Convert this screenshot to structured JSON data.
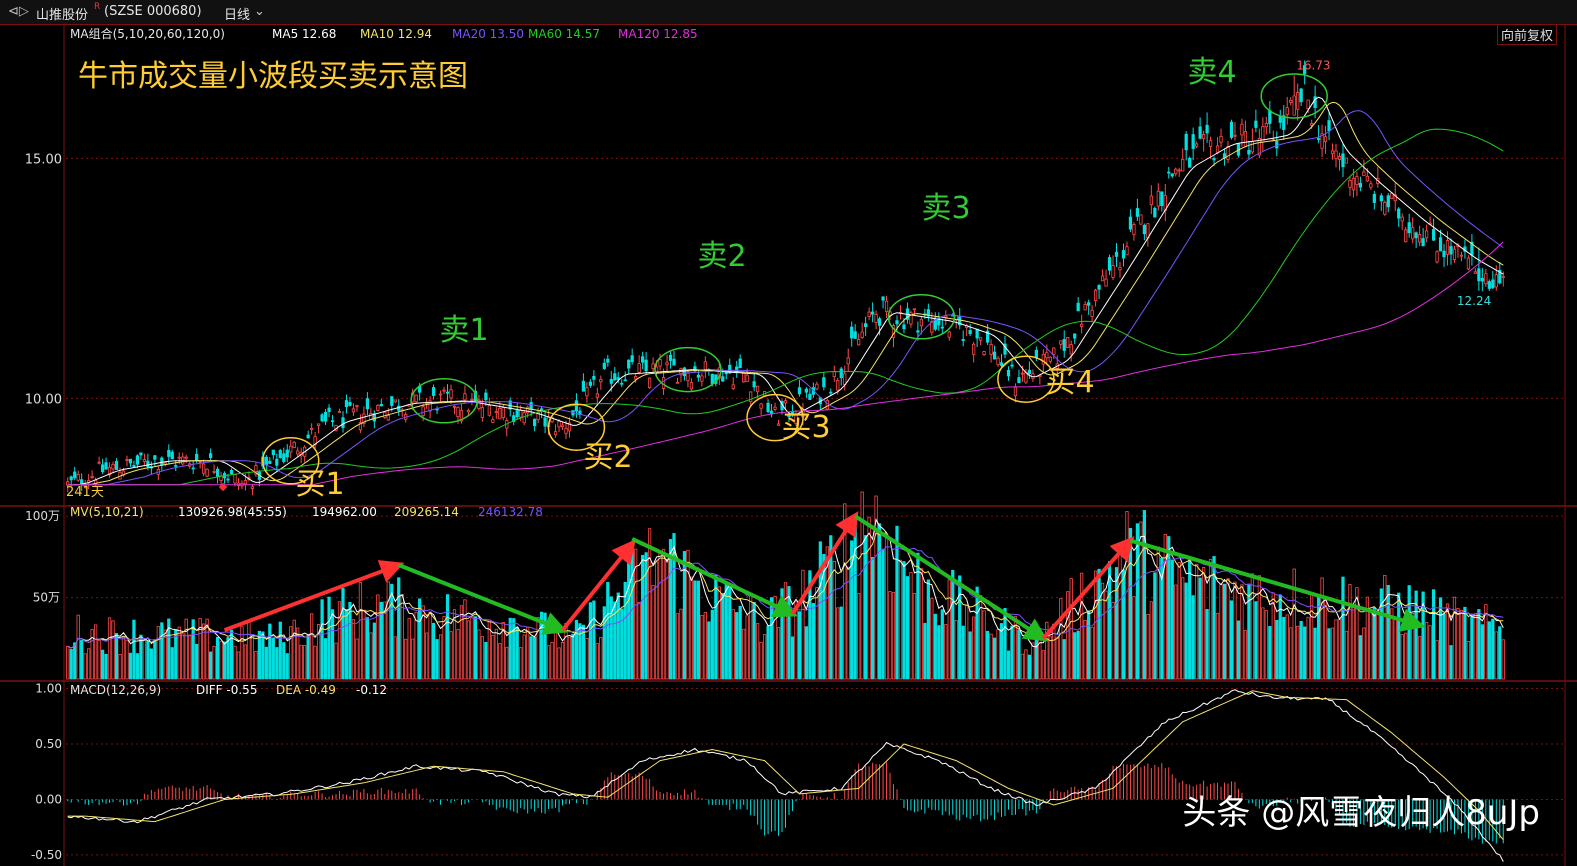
{
  "topbar": {
    "stock_name": "山推股份",
    "stock_code": "(SZSE 000680)",
    "period": "日线",
    "fq": "向前复权"
  },
  "ma_legend": {
    "combo": "MA组合(5,10,20,60,120,0)",
    "items": [
      {
        "label": "MA5 12.68",
        "color": "#ffffff"
      },
      {
        "label": "MA10 12.94",
        "color": "#f5e36a"
      },
      {
        "label": "MA20 13.50",
        "color": "#7a52ff"
      },
      {
        "label": "MA60 14.57",
        "color": "#22cc22"
      },
      {
        "label": "MA120 12.85",
        "color": "#e030e0"
      }
    ]
  },
  "annotation_title": "牛市成交量小波段买卖示意图",
  "buy_labels": [
    "买1",
    "买2",
    "买3",
    "买4"
  ],
  "sell_labels": [
    "卖1",
    "卖2",
    "卖3",
    "卖4"
  ],
  "days_label": "241天",
  "high_label": "16.73",
  "low_label": "12.24",
  "mv_legend": {
    "name": "MV(5,10,21)",
    "values": [
      "130926.98(45:55)",
      "194962.00",
      "209265.14",
      "246132.78"
    ],
    "colors": [
      "#ffffff",
      "#ffffff",
      "#f5e36a",
      "#7a52ff"
    ]
  },
  "macd_legend": {
    "name": "MACD(12,26,9)",
    "diff": "DIFF -0.55",
    "dea": "DEA -0.49",
    "macd": "-0.12"
  },
  "watermark": "头条 @风雪夜归人8uJp",
  "colors": {
    "up": "#ff4a4a",
    "down": "#00e0e0",
    "grid": "#7a1010",
    "buy": "#ffcc33",
    "sell": "#33cc33"
  },
  "chart_data": [
    {
      "type": "candlestick",
      "title": "牛市成交量小波段买卖示意图",
      "ylim": [
        7.8,
        17.8
      ],
      "yticks": [
        {
          "value": 15.0,
          "label": "15.00"
        },
        {
          "value": 10.0,
          "label": "10.00"
        }
      ],
      "price_path": [
        [
          0,
          8.2
        ],
        [
          10,
          8.5
        ],
        [
          25,
          8.7
        ],
        [
          40,
          8.7
        ],
        [
          50,
          8.2
        ],
        [
          60,
          8.7
        ],
        [
          75,
          9.5
        ],
        [
          95,
          9.9
        ],
        [
          110,
          9.95
        ],
        [
          130,
          9.7
        ],
        [
          142,
          9.4
        ],
        [
          155,
          10.5
        ],
        [
          175,
          10.6
        ],
        [
          195,
          10.5
        ],
        [
          203,
          9.6
        ],
        [
          218,
          10.2
        ],
        [
          232,
          11.8
        ],
        [
          250,
          11.6
        ],
        [
          262,
          11.3
        ],
        [
          272,
          10.4
        ],
        [
          283,
          10.8
        ],
        [
          300,
          12.7
        ],
        [
          318,
          14.8
        ],
        [
          330,
          15.3
        ],
        [
          340,
          15.4
        ],
        [
          347,
          15.5
        ],
        [
          355,
          16.4
        ],
        [
          362,
          15.2
        ],
        [
          372,
          14.5
        ],
        [
          385,
          13.7
        ],
        [
          400,
          12.9
        ],
        [
          412,
          12.4
        ]
      ],
      "ma_series": [
        {
          "name": "MA5",
          "color": "#ffffff",
          "lag": 3
        },
        {
          "name": "MA10",
          "color": "#f5e36a",
          "lag": 6
        },
        {
          "name": "MA20",
          "color": "#7a52ff",
          "lag": 11
        },
        {
          "name": "MA60",
          "color": "#22cc22",
          "lag": 32
        },
        {
          "name": "MA120",
          "color": "#e030e0",
          "lag": 70
        }
      ],
      "marked_high": 16.73,
      "marked_low": 12.24,
      "buy_points": [
        {
          "label": "买1",
          "bar": 64,
          "price": 8.7
        },
        {
          "label": "买2",
          "bar": 146,
          "price": 9.4
        },
        {
          "label": "买3",
          "bar": 203,
          "price": 9.6
        },
        {
          "label": "买4",
          "bar": 275,
          "price": 10.4
        }
      ],
      "sell_points": [
        {
          "label": "卖1",
          "bar": 108,
          "price": 9.95
        },
        {
          "label": "卖2",
          "bar": 178,
          "price": 10.6
        },
        {
          "label": "卖3",
          "bar": 245,
          "price": 11.7
        },
        {
          "label": "卖4",
          "bar": 352,
          "price": 16.3
        }
      ]
    },
    {
      "type": "bar",
      "title": "MV(5,10,21)",
      "ylim": [
        0,
        1050000
      ],
      "yticks": [
        {
          "value": 1000000,
          "label": "100万"
        },
        {
          "value": 500000,
          "label": "50万"
        }
      ],
      "volume_path": [
        [
          0,
          280000
        ],
        [
          40,
          260000
        ],
        [
          60,
          240000
        ],
        [
          75,
          380000
        ],
        [
          90,
          450000
        ],
        [
          110,
          380000
        ],
        [
          130,
          340000
        ],
        [
          145,
          230000
        ],
        [
          160,
          560000
        ],
        [
          170,
          760000
        ],
        [
          185,
          500000
        ],
        [
          200,
          340000
        ],
        [
          215,
          560000
        ],
        [
          230,
          1020000
        ],
        [
          245,
          560000
        ],
        [
          260,
          400000
        ],
        [
          278,
          220000
        ],
        [
          290,
          470000
        ],
        [
          305,
          780000
        ],
        [
          320,
          600000
        ],
        [
          340,
          520000
        ],
        [
          360,
          480000
        ],
        [
          385,
          430000
        ],
        [
          400,
          340000
        ],
        [
          412,
          300000
        ]
      ],
      "trend_arrows": [
        {
          "kind": "up",
          "from": [
            45,
            300000
          ],
          "to": [
            95,
            700000
          ]
        },
        {
          "kind": "down",
          "from": [
            95,
            700000
          ],
          "to": [
            142,
            300000
          ]
        },
        {
          "kind": "up",
          "from": [
            142,
            300000
          ],
          "to": [
            162,
            830000
          ]
        },
        {
          "kind": "down",
          "from": [
            162,
            860000
          ],
          "to": [
            208,
            400000
          ]
        },
        {
          "kind": "up",
          "from": [
            208,
            400000
          ],
          "to": [
            226,
            1000000
          ]
        },
        {
          "kind": "down",
          "from": [
            226,
            1000000
          ],
          "to": [
            280,
            250000
          ]
        },
        {
          "kind": "up",
          "from": [
            280,
            250000
          ],
          "to": [
            305,
            850000
          ]
        },
        {
          "kind": "down",
          "from": [
            305,
            850000
          ],
          "to": [
            388,
            330000
          ]
        }
      ]
    },
    {
      "type": "line",
      "title": "MACD(12,26,9)",
      "ylim": [
        -0.6,
        1.05
      ],
      "yticks": [
        {
          "value": 1.0,
          "label": "1.00"
        },
        {
          "value": 0.5,
          "label": "0.50"
        },
        {
          "value": 0.0,
          "label": "0.00"
        },
        {
          "value": -0.5,
          "label": "-0.50"
        }
      ],
      "diff_path": [
        [
          0,
          -0.15
        ],
        [
          20,
          -0.2
        ],
        [
          40,
          0.0
        ],
        [
          60,
          0.05
        ],
        [
          80,
          0.15
        ],
        [
          100,
          0.3
        ],
        [
          120,
          0.25
        ],
        [
          140,
          0.05
        ],
        [
          150,
          0.02
        ],
        [
          165,
          0.35
        ],
        [
          180,
          0.45
        ],
        [
          195,
          0.35
        ],
        [
          205,
          0.05
        ],
        [
          222,
          0.1
        ],
        [
          235,
          0.5
        ],
        [
          250,
          0.35
        ],
        [
          265,
          0.1
        ],
        [
          278,
          -0.05
        ],
        [
          295,
          0.1
        ],
        [
          315,
          0.7
        ],
        [
          335,
          0.98
        ],
        [
          345,
          0.92
        ],
        [
          362,
          0.9
        ],
        [
          375,
          0.6
        ],
        [
          390,
          0.2
        ],
        [
          400,
          -0.1
        ],
        [
          412,
          -0.55
        ]
      ],
      "dea_lag": 5,
      "diff_color": "#ffffff",
      "dea_color": "#f5e36a"
    }
  ]
}
